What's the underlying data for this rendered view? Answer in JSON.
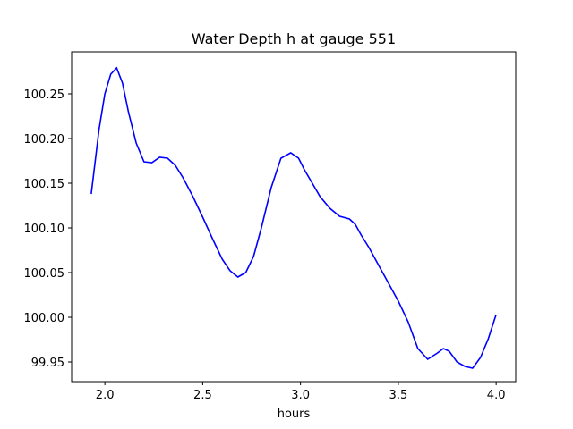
{
  "chart_data": {
    "type": "line",
    "title": "Water Depth h at gauge 551",
    "xlabel": "hours",
    "ylabel": "",
    "xlim": [
      1.83,
      4.1
    ],
    "ylim": [
      99.928,
      100.297
    ],
    "x_ticks": [
      2.0,
      2.5,
      3.0,
      3.5,
      4.0
    ],
    "x_tick_labels": [
      "2.0",
      "2.5",
      "3.0",
      "3.5",
      "4.0"
    ],
    "y_ticks": [
      99.95,
      100.0,
      100.05,
      100.1,
      100.15,
      100.2,
      100.25
    ],
    "y_tick_labels": [
      "99.95",
      "100.00",
      "100.05",
      "100.10",
      "100.15",
      "100.20",
      "100.25"
    ],
    "grid": false,
    "series": [
      {
        "name": "",
        "color": "#0000ff",
        "x": [
          1.93,
          1.97,
          2.0,
          2.03,
          2.06,
          2.09,
          2.12,
          2.16,
          2.2,
          2.24,
          2.28,
          2.32,
          2.36,
          2.4,
          2.45,
          2.5,
          2.55,
          2.6,
          2.64,
          2.68,
          2.72,
          2.76,
          2.8,
          2.85,
          2.9,
          2.95,
          2.99,
          3.02,
          3.06,
          3.1,
          3.15,
          3.2,
          3.25,
          3.28,
          3.31,
          3.35,
          3.4,
          3.45,
          3.5,
          3.55,
          3.6,
          3.65,
          3.7,
          3.73,
          3.76,
          3.8,
          3.84,
          3.88,
          3.92,
          3.96,
          4.0
        ],
        "y": [
          100.138,
          100.21,
          100.25,
          100.272,
          100.279,
          100.262,
          100.23,
          100.195,
          100.174,
          100.173,
          100.179,
          100.178,
          100.17,
          100.156,
          100.135,
          100.112,
          100.088,
          100.065,
          100.052,
          100.045,
          100.05,
          100.068,
          100.1,
          100.145,
          100.178,
          100.184,
          100.178,
          100.165,
          100.15,
          100.135,
          100.122,
          100.113,
          100.11,
          100.104,
          100.092,
          100.078,
          100.058,
          100.038,
          100.018,
          99.995,
          99.965,
          99.953,
          99.96,
          99.965,
          99.962,
          99.95,
          99.945,
          99.943,
          99.955,
          99.976,
          100.003
        ]
      }
    ]
  }
}
